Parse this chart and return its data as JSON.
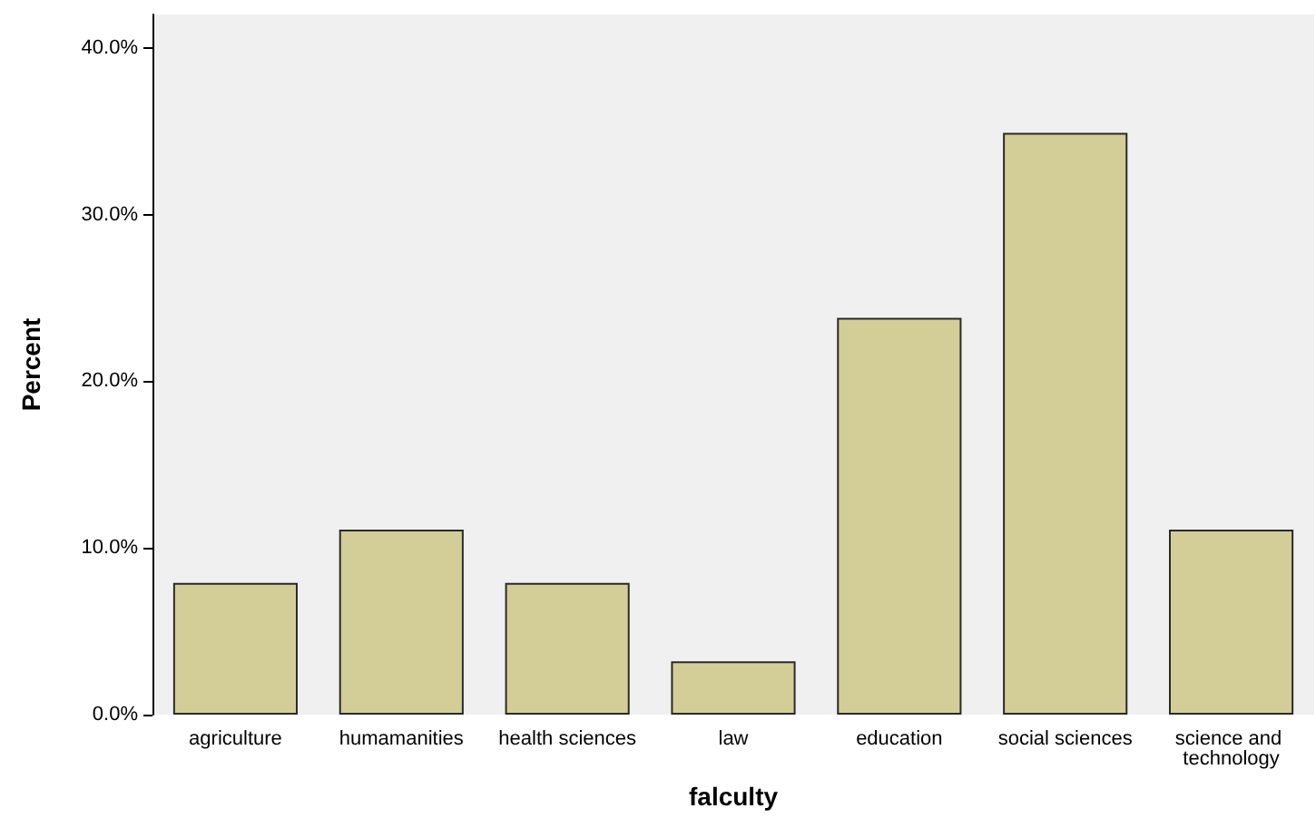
{
  "chart_data": {
    "type": "bar",
    "xlabel": "falculty",
    "ylabel": "Percent",
    "categories": [
      "agriculture",
      "humamanities",
      "health sciences",
      "law",
      "education",
      "social sciences",
      "science and technology"
    ],
    "values": [
      7.9,
      11.1,
      7.9,
      3.2,
      23.8,
      34.9,
      11.1
    ],
    "color": "#d3ce97",
    "ylim": [
      0,
      42
    ],
    "yticks": [
      {
        "value": 0,
        "label": "0.0%"
      },
      {
        "value": 10,
        "label": "10.0%"
      },
      {
        "value": 20,
        "label": "20.0%"
      },
      {
        "value": 30,
        "label": "30.0%"
      },
      {
        "value": 40,
        "label": "40.0%"
      }
    ],
    "grid": false
  }
}
